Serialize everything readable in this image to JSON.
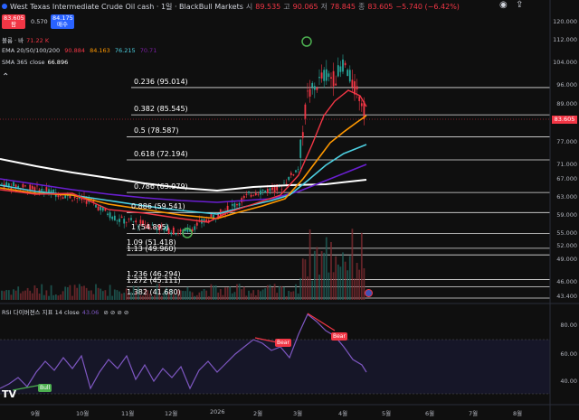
{
  "header": {
    "title": "West Texas Intermediate Crude Oil cash · 1일 · BlackBull Markets",
    "ohlc": [
      {
        "label": "시",
        "value": "89.535"
      },
      {
        "label": "고",
        "value": "90.065"
      },
      {
        "label": "저",
        "value": "78.845"
      },
      {
        "label": "종",
        "value": "83.605"
      },
      {
        "label": "",
        "value": "−5.740 (−6.42%)"
      }
    ]
  },
  "price_boxes": {
    "sell_price": "83.605",
    "sell_label": "팜",
    "spread": "0.570",
    "buy_price": "84.175",
    "buy_label": "매수"
  },
  "legends": {
    "volume": {
      "label": "볼륨 · 바",
      "value": "71.22 K"
    },
    "ema": {
      "label": "EMA 20/50/100/200",
      "values": [
        "90.884",
        "84.163",
        "76.215",
        "70.71"
      ]
    },
    "sma": {
      "label": "SMA 365 close",
      "value": "66.896"
    },
    "rsi": {
      "label": "RSI 다이버젼스 지표 14 close",
      "value": "43.06"
    }
  },
  "fib_levels": [
    {
      "label": "0.236 (95.014)",
      "price": 95.014
    },
    {
      "label": "0.382 (85.545)",
      "price": 85.545
    },
    {
      "label": "0.5 (78.587)",
      "price": 78.587
    },
    {
      "label": "0.618 (72.194)",
      "price": 72.194
    },
    {
      "label": "0.786 (63.979)",
      "price": 63.979
    },
    {
      "label": "0.886 (59.541)",
      "price": 59.541
    },
    {
      "label": "1 (54.895)",
      "price": 54.895
    },
    {
      "label": "1.09 (51.418)",
      "price": 51.418
    },
    {
      "label": "1.13 (49.960)",
      "price": 49.96
    },
    {
      "label": "1.236 (46.294)",
      "price": 46.294
    },
    {
      "label": "1.272 (45.111)",
      "price": 45.111
    },
    {
      "label": "1.382 (41.680)",
      "price": 41.68
    }
  ],
  "price_axis": [
    "120.000",
    "112.000",
    "104.000",
    "96.000",
    "89.000",
    "83.605",
    "77.000",
    "71.000",
    "67.000",
    "63.000",
    "59.000",
    "55.000",
    "52.000",
    "49.000",
    "46.000",
    "43.400"
  ],
  "rsi_axis": [
    "80.00",
    "60.00",
    "40.00"
  ],
  "time_axis": [
    "9월",
    "10월",
    "11월",
    "12월",
    "2026",
    "2월",
    "3월",
    "4월",
    "5월",
    "6월",
    "7월",
    "8월"
  ],
  "badges": {
    "bull": "Bull",
    "bear1": "Bear",
    "bear2": "Bear"
  },
  "colors": {
    "up": "#26a69a",
    "down": "#f23645",
    "ema20": "#f23645",
    "ema50": "#ff9800",
    "ema100": "#4dd0e1",
    "ema200": "#7b1fa2",
    "sma365": "#ffffff",
    "rsi": "#7e57c2"
  }
}
